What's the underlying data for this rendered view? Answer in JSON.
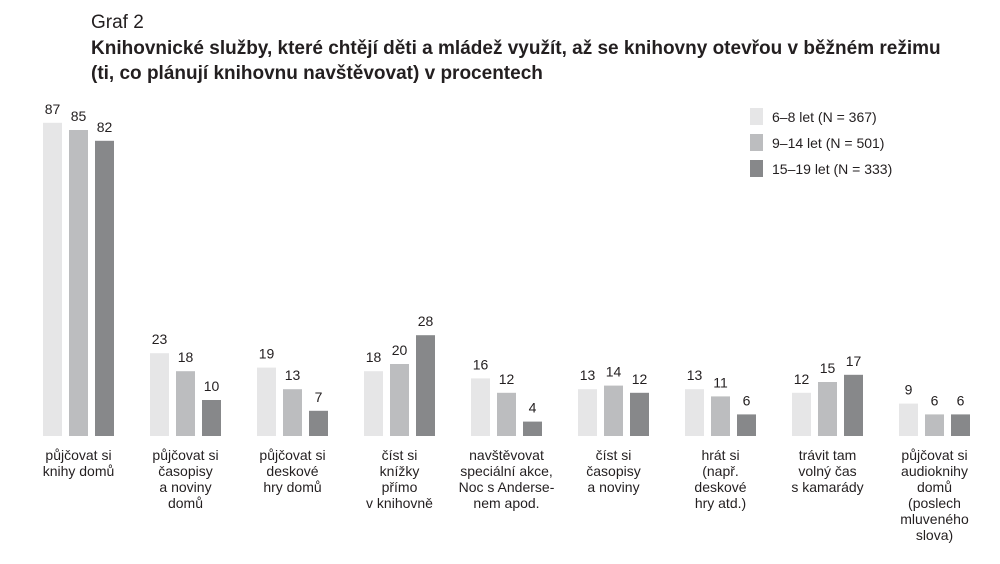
{
  "header": {
    "graf_label": "Graf 2",
    "title": "Knihovnické služby, které chtějí děti a mládež využít, až se knihovny otevřou v běžném režimu (ti, co plánují knihovnu navštěvovat) v procentech"
  },
  "chart_data": {
    "type": "bar",
    "title": "Knihovnické služby, které chtějí děti a mládež využít, až se knihovny otevřou v běžném režimu (ti, co plánují knihovnu navštěvovat) v procentech",
    "xlabel": "",
    "ylabel": "",
    "ylim": [
      0,
      87
    ],
    "grid": false,
    "legend_position": "top-right",
    "categories": [
      [
        "půjčovat si",
        "knihy domů"
      ],
      [
        "půjčovat si",
        "časopisy",
        "a noviny",
        "domů"
      ],
      [
        "půjčovat si",
        "deskové",
        "hry domů"
      ],
      [
        "číst si",
        "knížky",
        "přímo",
        "v knihovně"
      ],
      [
        "navštěvovat",
        "speciální akce,",
        "Noc s Anderse-",
        "nem apod."
      ],
      [
        "číst si",
        "časopisy",
        "a noviny"
      ],
      [
        "hrát si",
        "(např.",
        "deskové",
        "hry atd.)"
      ],
      [
        "trávit tam",
        "volný čas",
        "s kamarády"
      ],
      [
        "půjčovat si",
        "audioknihy",
        "domů",
        "(poslech",
        "mluveného",
        "slova)"
      ]
    ],
    "series": [
      {
        "name": "6–8 let (N = 367)",
        "color": "#e6e6e7",
        "values": [
          87,
          23,
          19,
          18,
          16,
          13,
          13,
          12,
          9
        ]
      },
      {
        "name": "9–14 let (N = 501)",
        "color": "#bcbdbf",
        "values": [
          85,
          18,
          13,
          20,
          12,
          14,
          11,
          15,
          6
        ]
      },
      {
        "name": "15–19 let (N = 333)",
        "color": "#87888a",
        "values": [
          82,
          10,
          7,
          28,
          4,
          12,
          6,
          17,
          6
        ]
      }
    ]
  }
}
